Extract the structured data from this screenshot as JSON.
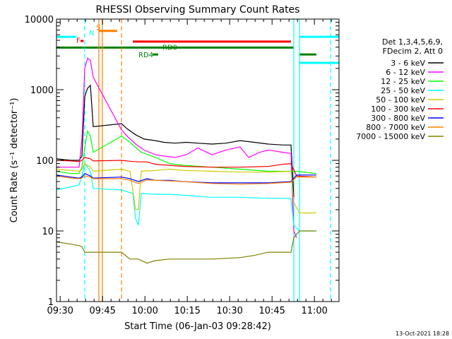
{
  "chart_data": {
    "type": "line",
    "title": "RHESSI Observing Summary Count Rates",
    "xlabel": "Start Time (06-Jan-03 09:28:42)",
    "ylabel": "Count Rate (s⁻¹ detector⁻¹)",
    "y_scale": "log",
    "ylim": [
      1,
      10000
    ],
    "xlim_minutes": [
      0,
      100
    ],
    "x_ticks": [
      {
        "label": "09:30",
        "t": 1.3
      },
      {
        "label": "09:45",
        "t": 16.3
      },
      {
        "label": "10:00",
        "t": 31.3
      },
      {
        "label": "10:15",
        "t": 46.3
      },
      {
        "label": "10:30",
        "t": 61.3
      },
      {
        "label": "10:45",
        "t": 76.3
      },
      {
        "label": "11:00",
        "t": 91.3
      }
    ],
    "y_ticks": [
      {
        "label": "1",
        "v": 1
      },
      {
        "label": "10",
        "v": 10
      },
      {
        "label": "100",
        "v": 100
      },
      {
        "label": "1000",
        "v": 1000
      },
      {
        "label": "10000",
        "v": 10000
      }
    ],
    "legend": {
      "header": [
        "Det 1,3,4,5,6,9,",
        "FDecim 2, Att 0"
      ],
      "placement": "right"
    },
    "series": [
      {
        "name": "3 - 6 keV",
        "color": "#000000",
        "points": [
          [
            0,
            105
          ],
          [
            5,
            100
          ],
          [
            8,
            100
          ],
          [
            9,
            115
          ],
          [
            10,
            800
          ],
          [
            11,
            1050
          ],
          [
            12,
            1150
          ],
          [
            13,
            300
          ],
          [
            23,
            330
          ],
          [
            25,
            280
          ],
          [
            28,
            230
          ],
          [
            31,
            200
          ],
          [
            35,
            190
          ],
          [
            38,
            180
          ],
          [
            42,
            175
          ],
          [
            46,
            180
          ],
          [
            50,
            175
          ],
          [
            55,
            170
          ],
          [
            60,
            175
          ],
          [
            65,
            190
          ],
          [
            70,
            180
          ],
          [
            75,
            170
          ],
          [
            80,
            165
          ],
          [
            83,
            165
          ],
          [
            84,
            30
          ]
        ]
      },
      {
        "name": "6 - 12 keV",
        "color": "#ff00ff",
        "points": [
          [
            0,
            80
          ],
          [
            5,
            80
          ],
          [
            8,
            80
          ],
          [
            9,
            200
          ],
          [
            10,
            2000
          ],
          [
            11,
            2800
          ],
          [
            12,
            2600
          ],
          [
            13,
            1500
          ],
          [
            23,
            270
          ],
          [
            25,
            220
          ],
          [
            28,
            170
          ],
          [
            31,
            140
          ],
          [
            35,
            120
          ],
          [
            38,
            115
          ],
          [
            42,
            110
          ],
          [
            46,
            120
          ],
          [
            50,
            150
          ],
          [
            55,
            120
          ],
          [
            60,
            140
          ],
          [
            65,
            155
          ],
          [
            68,
            110
          ],
          [
            72,
            130
          ],
          [
            75,
            140
          ],
          [
            80,
            130
          ],
          [
            83,
            125
          ],
          [
            84,
            10
          ],
          [
            85,
            8
          ]
        ]
      },
      {
        "name": "12 - 25 keV",
        "color": "#00ff00",
        "points": [
          [
            0,
            70
          ],
          [
            5,
            65
          ],
          [
            8,
            65
          ],
          [
            9,
            80
          ],
          [
            10,
            150
          ],
          [
            11,
            260
          ],
          [
            12,
            220
          ],
          [
            13,
            130
          ],
          [
            23,
            220
          ],
          [
            26,
            180
          ],
          [
            30,
            130
          ],
          [
            35,
            110
          ],
          [
            40,
            90
          ],
          [
            45,
            85
          ],
          [
            55,
            80
          ],
          [
            65,
            75
          ],
          [
            75,
            70
          ],
          [
            83,
            70
          ],
          [
            85,
            70
          ],
          [
            92,
            65
          ]
        ]
      },
      {
        "name": "25 - 50 keV",
        "color": "#00ffff",
        "points": [
          [
            0,
            38
          ],
          [
            5,
            42
          ],
          [
            8,
            45
          ],
          [
            9,
            60
          ],
          [
            10,
            90
          ],
          [
            12,
            70
          ],
          [
            13,
            40
          ],
          [
            23,
            38
          ],
          [
            27,
            34
          ],
          [
            28,
            15
          ],
          [
            29,
            12
          ],
          [
            30,
            34
          ],
          [
            35,
            33
          ],
          [
            40,
            33
          ],
          [
            45,
            32
          ],
          [
            55,
            30
          ],
          [
            65,
            30
          ],
          [
            75,
            29
          ],
          [
            83,
            29
          ],
          [
            84,
            12
          ],
          [
            86,
            10
          ],
          [
            92,
            10
          ]
        ]
      },
      {
        "name": "50 - 100 keV",
        "color": "#cccc00",
        "points": [
          [
            0,
            75
          ],
          [
            5,
            72
          ],
          [
            8,
            70
          ],
          [
            9,
            75
          ],
          [
            10,
            90
          ],
          [
            12,
            80
          ],
          [
            13,
            70
          ],
          [
            23,
            75
          ],
          [
            26,
            70
          ],
          [
            28,
            20
          ],
          [
            29,
            20
          ],
          [
            30,
            70
          ],
          [
            35,
            72
          ],
          [
            40,
            75
          ],
          [
            45,
            72
          ],
          [
            55,
            70
          ],
          [
            65,
            68
          ],
          [
            75,
            68
          ],
          [
            83,
            70
          ],
          [
            84,
            25
          ],
          [
            86,
            18
          ],
          [
            92,
            18
          ]
        ]
      },
      {
        "name": "100 - 300 keV",
        "color": "#ff0000",
        "points": [
          [
            0,
            100
          ],
          [
            5,
            98
          ],
          [
            8,
            96
          ],
          [
            9,
            100
          ],
          [
            10,
            110
          ],
          [
            12,
            105
          ],
          [
            13,
            98
          ],
          [
            23,
            100
          ],
          [
            26,
            97
          ],
          [
            29,
            95
          ],
          [
            32,
            95
          ],
          [
            35,
            88
          ],
          [
            40,
            85
          ],
          [
            45,
            82
          ],
          [
            55,
            80
          ],
          [
            65,
            80
          ],
          [
            75,
            82
          ],
          [
            80,
            88
          ],
          [
            83,
            90
          ],
          [
            85,
            60
          ],
          [
            92,
            58
          ]
        ]
      },
      {
        "name": "300 - 800 keV",
        "color": "#0000ff",
        "points": [
          [
            0,
            62
          ],
          [
            5,
            58
          ],
          [
            8,
            56
          ],
          [
            9,
            58
          ],
          [
            10,
            65
          ],
          [
            12,
            60
          ],
          [
            13,
            56
          ],
          [
            23,
            58
          ],
          [
            26,
            55
          ],
          [
            29,
            50
          ],
          [
            32,
            55
          ],
          [
            35,
            52
          ],
          [
            40,
            52
          ],
          [
            45,
            50
          ],
          [
            55,
            48
          ],
          [
            65,
            48
          ],
          [
            75,
            48
          ],
          [
            83,
            50
          ],
          [
            85,
            62
          ],
          [
            92,
            62
          ]
        ]
      },
      {
        "name": "800 - 7000 keV",
        "color": "#ff8000",
        "points": [
          [
            0,
            60
          ],
          [
            5,
            56
          ],
          [
            8,
            55
          ],
          [
            9,
            56
          ],
          [
            10,
            60
          ],
          [
            12,
            58
          ],
          [
            13,
            55
          ],
          [
            23,
            55
          ],
          [
            26,
            52
          ],
          [
            29,
            47
          ],
          [
            32,
            53
          ],
          [
            35,
            52
          ],
          [
            40,
            51
          ],
          [
            45,
            50
          ],
          [
            55,
            47
          ],
          [
            65,
            46
          ],
          [
            75,
            47
          ],
          [
            83,
            49
          ],
          [
            85,
            58
          ],
          [
            92,
            58
          ]
        ]
      },
      {
        "name": "7000 - 15000 keV",
        "color": "#808000",
        "points": [
          [
            0,
            7
          ],
          [
            5,
            6.5
          ],
          [
            8,
            6.2
          ],
          [
            9,
            6
          ],
          [
            10,
            5
          ],
          [
            12,
            5
          ],
          [
            13,
            5
          ],
          [
            23,
            5
          ],
          [
            26,
            4
          ],
          [
            29,
            4
          ],
          [
            32,
            3.5
          ],
          [
            35,
            3.8
          ],
          [
            40,
            4
          ],
          [
            45,
            4
          ],
          [
            55,
            4
          ],
          [
            65,
            4.2
          ],
          [
            70,
            4.5
          ],
          [
            75,
            5
          ],
          [
            80,
            5
          ],
          [
            83,
            5
          ],
          [
            84,
            8
          ],
          [
            86,
            10
          ],
          [
            92,
            10
          ]
        ]
      }
    ],
    "flag_labels": [
      {
        "text": "S",
        "color": "#ff8000"
      },
      {
        "text": "N",
        "color": "#00ffff"
      },
      {
        "text": "F",
        "color": "#ff0000"
      },
      {
        "text": "RD0",
        "color": "#008000"
      },
      {
        "text": "RD4",
        "color": "#008000"
      }
    ],
    "flag_bars": [
      {
        "name": "saa-left",
        "color": "#00ffff",
        "t0": 0,
        "t1": 7,
        "level": 5600
      },
      {
        "name": "saa-right",
        "color": "#00ffff",
        "t0": 86,
        "t1": 100,
        "level": 5600
      },
      {
        "name": "saa-right-low",
        "color": "#00ffff",
        "t0": 86,
        "t1": 100,
        "level": 2400
      },
      {
        "name": "slew",
        "color": "#ff8000",
        "t0": 15,
        "t1": 21.5,
        "level": 6800
      },
      {
        "name": "flare",
        "color": "#ff0000",
        "t0": 8.5,
        "t1": 9.6,
        "level": 4900
      },
      {
        "name": "flare-long",
        "color": "#ff0000",
        "t0": 27,
        "t1": 83,
        "level": 4800
      },
      {
        "name": "rd0-line",
        "color": "#008000",
        "t0": 0,
        "t1": 84,
        "level": 3950
      },
      {
        "name": "rd0-right",
        "color": "#008000",
        "t0": 86,
        "t1": 92,
        "level": 3150
      },
      {
        "name": "rd4-mark",
        "color": "#008000",
        "t0": 34,
        "t1": 36,
        "level": 3150
      }
    ],
    "vlines": [
      {
        "name": "cyan-dashed-1",
        "color": "#00ffff",
        "t": 10,
        "dash": true
      },
      {
        "name": "cyan-dashed-2",
        "color": "#00ffff",
        "t": 97,
        "dash": true
      },
      {
        "name": "cyan-solid-1",
        "color": "#00ffff",
        "t": 84,
        "dash": false
      },
      {
        "name": "cyan-solid-2",
        "color": "#00ffff",
        "t": 86,
        "dash": false
      },
      {
        "name": "orange-solid-1",
        "color": "#ff8000",
        "t": 15,
        "dash": false
      },
      {
        "name": "orange-solid-2",
        "color": "#ff8000",
        "t": 16.2,
        "dash": false
      },
      {
        "name": "orange-dashed",
        "color": "#ff8000",
        "t": 23,
        "dash": true
      }
    ]
  },
  "footer": {
    "timestamp": "13-Oct-2021 18:28"
  }
}
